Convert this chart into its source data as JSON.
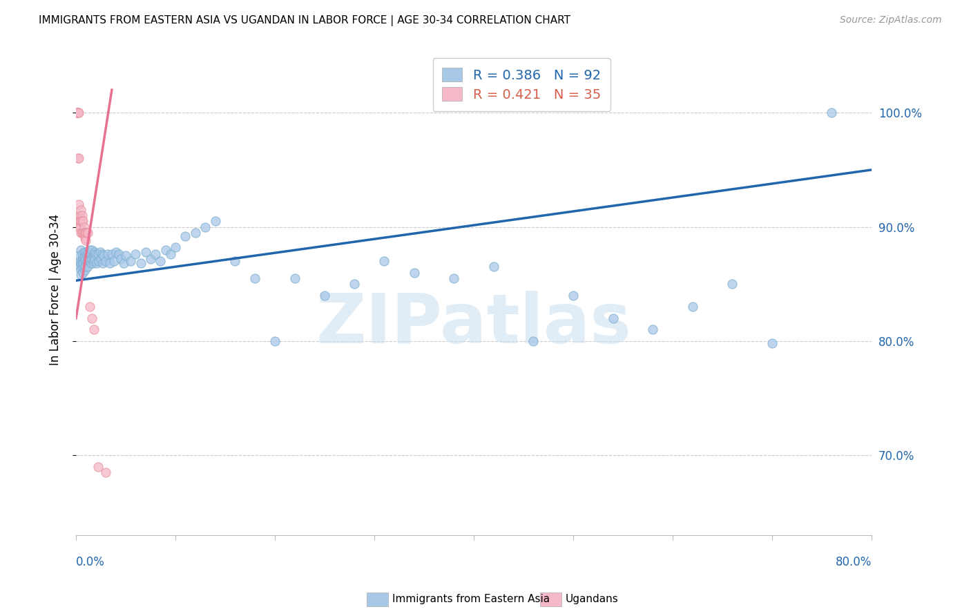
{
  "title": "IMMIGRANTS FROM EASTERN ASIA VS UGANDAN IN LABOR FORCE | AGE 30-34 CORRELATION CHART",
  "source": "Source: ZipAtlas.com",
  "ylabel": "In Labor Force | Age 30-34",
  "y_ticks": [
    0.7,
    0.8,
    0.9,
    1.0
  ],
  "y_tick_labels": [
    "70.0%",
    "80.0%",
    "90.0%",
    "100.0%"
  ],
  "x_range": [
    0.0,
    0.8
  ],
  "y_range": [
    0.63,
    1.06
  ],
  "blue_R": 0.386,
  "blue_N": 92,
  "pink_R": 0.421,
  "pink_N": 35,
  "blue_color": "#a8c8e8",
  "blue_edge_color": "#7aaed0",
  "blue_line_color": "#2166ac",
  "pink_color": "#f4b8c8",
  "pink_edge_color": "#e8909a",
  "pink_line_color": "#e87090",
  "legend_label_blue": "Immigrants from Eastern Asia",
  "legend_label_pink": "Ugandans",
  "watermark": "ZIPatlas",
  "blue_line_x0": 0.0,
  "blue_line_y0": 0.853,
  "blue_line_x1": 0.8,
  "blue_line_y1": 0.95,
  "pink_line_x0": 0.0,
  "pink_line_y0": 0.82,
  "pink_line_x1": 0.036,
  "pink_line_y1": 1.02,
  "blue_scatter_x": [
    0.003,
    0.004,
    0.004,
    0.005,
    0.005,
    0.005,
    0.005,
    0.006,
    0.006,
    0.006,
    0.007,
    0.007,
    0.007,
    0.008,
    0.008,
    0.008,
    0.009,
    0.009,
    0.009,
    0.01,
    0.01,
    0.01,
    0.011,
    0.011,
    0.012,
    0.012,
    0.012,
    0.013,
    0.013,
    0.014,
    0.014,
    0.015,
    0.015,
    0.016,
    0.016,
    0.017,
    0.017,
    0.018,
    0.018,
    0.019,
    0.019,
    0.02,
    0.021,
    0.022,
    0.023,
    0.024,
    0.025,
    0.026,
    0.027,
    0.028,
    0.03,
    0.032,
    0.034,
    0.036,
    0.038,
    0.04,
    0.043,
    0.045,
    0.048,
    0.05,
    0.055,
    0.06,
    0.065,
    0.07,
    0.075,
    0.08,
    0.085,
    0.09,
    0.095,
    0.1,
    0.11,
    0.12,
    0.13,
    0.14,
    0.16,
    0.18,
    0.2,
    0.22,
    0.25,
    0.28,
    0.31,
    0.34,
    0.38,
    0.42,
    0.46,
    0.5,
    0.54,
    0.58,
    0.62,
    0.66,
    0.7,
    0.76
  ],
  "blue_scatter_y": [
    0.875,
    0.87,
    0.865,
    0.88,
    0.868,
    0.862,
    0.858,
    0.876,
    0.87,
    0.865,
    0.872,
    0.868,
    0.86,
    0.878,
    0.872,
    0.865,
    0.875,
    0.87,
    0.862,
    0.878,
    0.872,
    0.865,
    0.876,
    0.87,
    0.878,
    0.872,
    0.865,
    0.876,
    0.87,
    0.88,
    0.872,
    0.876,
    0.868,
    0.88,
    0.872,
    0.875,
    0.868,
    0.876,
    0.87,
    0.878,
    0.872,
    0.876,
    0.868,
    0.876,
    0.87,
    0.878,
    0.872,
    0.876,
    0.868,
    0.875,
    0.87,
    0.876,
    0.868,
    0.876,
    0.87,
    0.878,
    0.876,
    0.872,
    0.868,
    0.875,
    0.87,
    0.876,
    0.868,
    0.878,
    0.872,
    0.876,
    0.87,
    0.88,
    0.876,
    0.882,
    0.892,
    0.895,
    0.9,
    0.905,
    0.87,
    0.855,
    0.8,
    0.855,
    0.84,
    0.85,
    0.87,
    0.86,
    0.855,
    0.865,
    0.8,
    0.84,
    0.82,
    0.81,
    0.83,
    0.85,
    0.798,
    1.0
  ],
  "pink_scatter_x": [
    0.001,
    0.001,
    0.001,
    0.002,
    0.002,
    0.002,
    0.003,
    0.003,
    0.003,
    0.003,
    0.003,
    0.004,
    0.004,
    0.004,
    0.005,
    0.005,
    0.005,
    0.006,
    0.006,
    0.006,
    0.007,
    0.007,
    0.008,
    0.008,
    0.009,
    0.009,
    0.01,
    0.01,
    0.011,
    0.012,
    0.014,
    0.016,
    0.018,
    0.022,
    0.03
  ],
  "pink_scatter_y": [
    1.0,
    1.0,
    1.0,
    1.0,
    1.0,
    0.96,
    1.0,
    0.96,
    0.92,
    0.91,
    0.9,
    0.91,
    0.905,
    0.9,
    0.915,
    0.905,
    0.895,
    0.91,
    0.905,
    0.895,
    0.905,
    0.895,
    0.9,
    0.895,
    0.895,
    0.89,
    0.895,
    0.888,
    0.895,
    0.895,
    0.83,
    0.82,
    0.81,
    0.69,
    0.685
  ]
}
